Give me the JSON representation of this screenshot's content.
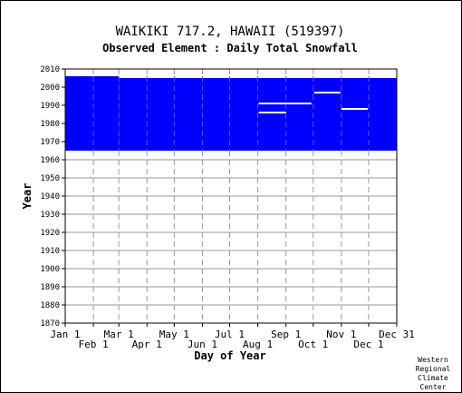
{
  "chart_data": {
    "type": "heatmap",
    "title": "WAIKIKI 717.2, HAWAII   (519397)",
    "subtitle": "Observed Element : Daily Total Snowfall",
    "xlabel": "Day of Year",
    "ylabel": "Year",
    "xlim": [
      1,
      366
    ],
    "ylim": [
      1870,
      2010
    ],
    "x_ticks_upper": [
      {
        "label": "Jan 1",
        "day": 1
      },
      {
        "label": "Mar 1",
        "day": 60
      },
      {
        "label": "May 1",
        "day": 121
      },
      {
        "label": "Jul 1",
        "day": 182
      },
      {
        "label": "Sep 1",
        "day": 244
      },
      {
        "label": "Nov 1",
        "day": 305
      },
      {
        "label": "Dec 31",
        "day": 366
      }
    ],
    "x_ticks_lower": [
      {
        "label": "Feb 1",
        "day": 32
      },
      {
        "label": "Apr 1",
        "day": 91
      },
      {
        "label": "Jun 1",
        "day": 152
      },
      {
        "label": "Aug 1",
        "day": 213
      },
      {
        "label": "Oct 1",
        "day": 274
      },
      {
        "label": "Dec 1",
        "day": 335
      }
    ],
    "y_ticks": [
      2010,
      2000,
      1990,
      1980,
      1970,
      1960,
      1950,
      1940,
      1930,
      1920,
      1910,
      1900,
      1890,
      1880,
      1870
    ],
    "grid": true,
    "data_color": "#0000ff",
    "gap_color": "#ffffff",
    "data_coverage": [
      {
        "day_start": 1,
        "day_end": 60,
        "year_start": 1965,
        "year_end": 2006
      },
      {
        "day_start": 60,
        "day_end": 366,
        "year_start": 1965,
        "year_end": 2005
      }
    ],
    "missing_segments": [
      {
        "year": 1991,
        "day_start": 214,
        "day_end": 272
      },
      {
        "year": 1986,
        "day_start": 214,
        "day_end": 244
      },
      {
        "year": 1997,
        "day_start": 275,
        "day_end": 304
      },
      {
        "year": 1988,
        "day_start": 305,
        "day_end": 334
      }
    ]
  },
  "footer": {
    "credit_lines": [
      "Western",
      "Regional",
      "Climate",
      "Center"
    ]
  }
}
